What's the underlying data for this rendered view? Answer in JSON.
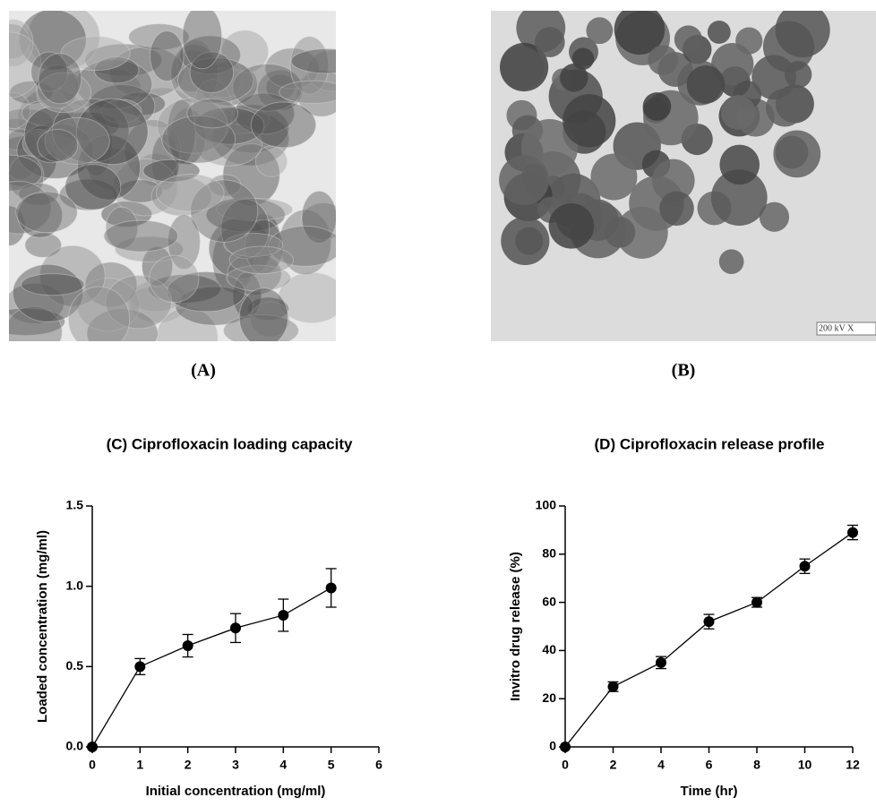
{
  "images": [
    {
      "label": "(A)"
    },
    {
      "label": "(B)",
      "scale_text": "200 kV X"
    }
  ],
  "chart_data": [
    {
      "type": "line",
      "title": "(C) Ciprofloxacin loading capacity",
      "x_label": "Initial concentration (mg/ml)",
      "y_label": "Loaded concentration (mg/ml)",
      "x": [
        0,
        1,
        2,
        3,
        4,
        5
      ],
      "series": [
        {
          "color": "#000000",
          "values": [
            0,
            0.5,
            0.63,
            0.74,
            0.82,
            0.99
          ],
          "errors": [
            0,
            0.05,
            0.07,
            0.09,
            0.1,
            0.12
          ]
        }
      ],
      "xlim": [
        0,
        6
      ],
      "xticks": [
        0,
        1,
        2,
        3,
        4,
        5,
        6
      ],
      "ylim": [
        0,
        1.5
      ],
      "yticks": [
        {
          "value": 0,
          "label": "0.0"
        },
        0.5,
        {
          "value": 1,
          "label": "1.0"
        },
        1.5
      ]
    },
    {
      "type": "line",
      "title": "(D) Ciprofloxacin release profile",
      "x_label": "Time (hr)",
      "y_label": "Invitro drug release (%)",
      "x": [
        0,
        2,
        4,
        6,
        8,
        10,
        12
      ],
      "series": [
        {
          "color": "#000000",
          "values": [
            0,
            25,
            35,
            52,
            60,
            75,
            89
          ],
          "errors": [
            0,
            2,
            2.5,
            3,
            2,
            3,
            3
          ]
        }
      ],
      "xlim": [
        0,
        12
      ],
      "xticks": [
        0,
        2,
        4,
        6,
        8,
        10,
        12
      ],
      "ylim": [
        0,
        100
      ],
      "yticks": [
        0,
        20,
        40,
        60,
        80,
        100
      ]
    }
  ]
}
